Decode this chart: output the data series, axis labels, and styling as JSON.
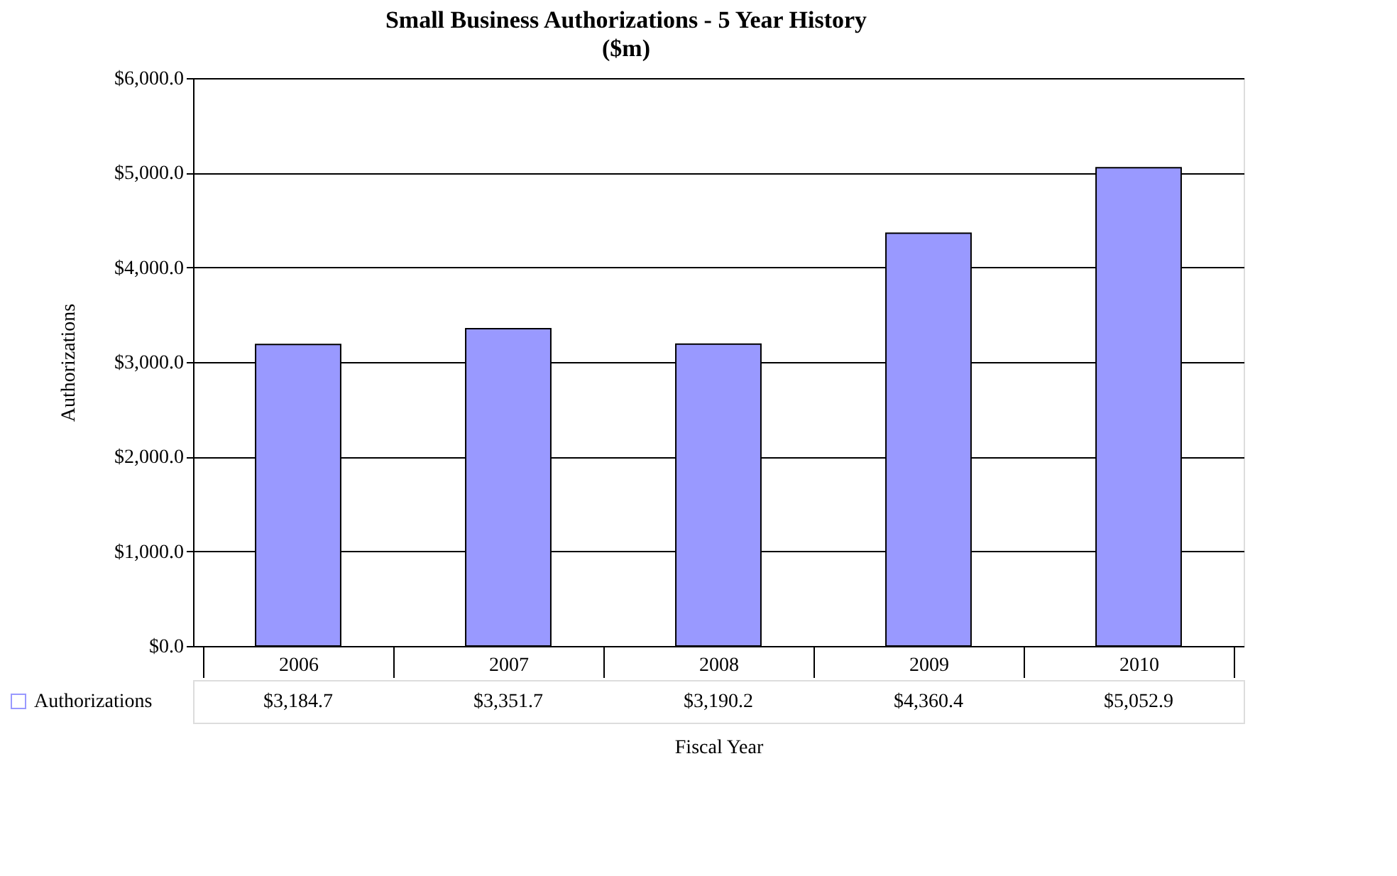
{
  "chart_data": {
    "type": "bar",
    "title": "Small Business Authorizations - 5 Year History",
    "subtitle": "($m)",
    "xlabel": "Fiscal Year",
    "ylabel": "Authorizations",
    "categories": [
      "2006",
      "2007",
      "2008",
      "2009",
      "2010"
    ],
    "series": [
      {
        "name": "Authorizations",
        "color": "#9999ff",
        "values": [
          3184.7,
          3351.7,
          3190.2,
          4360.4,
          5052.9
        ],
        "value_labels": [
          "$3,184.7",
          "$3,351.7",
          "$3,190.2",
          "$4,360.4",
          "$5,052.9"
        ]
      }
    ],
    "ylim": [
      0,
      6000
    ],
    "yticks": [
      {
        "value": 0,
        "label": "$0.0"
      },
      {
        "value": 1000,
        "label": "$1,000.0"
      },
      {
        "value": 2000,
        "label": "$2,000.0"
      },
      {
        "value": 3000,
        "label": "$3,000.0"
      },
      {
        "value": 4000,
        "label": "$4,000.0"
      },
      {
        "value": 5000,
        "label": "$5,000.0"
      },
      {
        "value": 6000,
        "label": "$6,000.0"
      }
    ],
    "grid": "y",
    "legend": "bottom left"
  }
}
